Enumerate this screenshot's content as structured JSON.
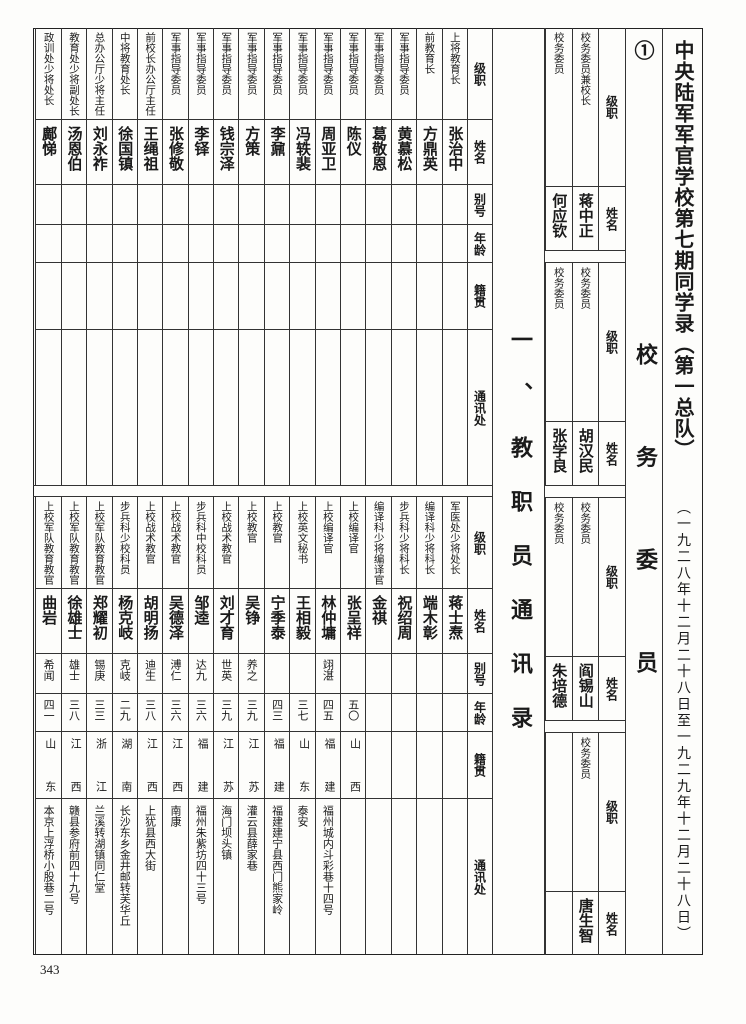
{
  "document": {
    "title": "中央陆军军官学校第七期同学录（第一总队）①",
    "date_range": "（一九二八年十二月二十八日至一九二九年十二月二十八日）",
    "page_number": "343"
  },
  "committee": {
    "section_title": "校务委员",
    "header": {
      "rank": "级职",
      "name": "姓名"
    },
    "blocks": [
      {
        "members": [
          {
            "rank": "校务委员兼校长",
            "name": "蒋中正"
          },
          {
            "rank": "校务委员",
            "name": "何应钦"
          }
        ]
      },
      {
        "members": [
          {
            "rank": "校务委员",
            "name": "胡汉民"
          },
          {
            "rank": "校务委员",
            "name": "张学良"
          }
        ]
      },
      {
        "members": [
          {
            "rank": "校务委员",
            "name": "阎锡山"
          },
          {
            "rank": "校务委员",
            "name": "朱培德"
          }
        ]
      },
      {
        "members": [
          {
            "rank": "校务委员",
            "name": "唐生智"
          },
          {
            "rank": "",
            "name": ""
          }
        ]
      }
    ]
  },
  "staff": {
    "section_title": "一、教职员通讯录",
    "headers": {
      "rank": "级职",
      "name": "姓名",
      "alias": "别号",
      "age": "年龄",
      "origin": "籍贯",
      "address": "通讯处"
    },
    "upper": [
      {
        "rank": "上将教育长",
        "name": "张治中",
        "alias": "",
        "age": "",
        "origin": "",
        "address": ""
      },
      {
        "rank": "前教育长",
        "name": "方鼎英",
        "alias": "",
        "age": "",
        "origin": "",
        "address": ""
      },
      {
        "rank": "军事指导委员",
        "name": "黄慕松",
        "alias": "",
        "age": "",
        "origin": "",
        "address": ""
      },
      {
        "rank": "军事指导委员",
        "name": "葛敬恩",
        "alias": "",
        "age": "",
        "origin": "",
        "address": ""
      },
      {
        "rank": "军事指导委员",
        "name": "陈仪",
        "alias": "",
        "age": "",
        "origin": "",
        "address": ""
      },
      {
        "rank": "军事指导委员",
        "name": "周亚卫",
        "alias": "",
        "age": "",
        "origin": "",
        "address": ""
      },
      {
        "rank": "军事指导委员",
        "name": "冯轶裴",
        "alias": "",
        "age": "",
        "origin": "",
        "address": ""
      },
      {
        "rank": "军事指导委员",
        "name": "李鼐",
        "alias": "",
        "age": "",
        "origin": "",
        "address": ""
      },
      {
        "rank": "军事指导委员",
        "name": "方策",
        "alias": "",
        "age": "",
        "origin": "",
        "address": ""
      },
      {
        "rank": "军事指导委员",
        "name": "钱宗泽",
        "alias": "",
        "age": "",
        "origin": "",
        "address": ""
      },
      {
        "rank": "军事指导委员",
        "name": "李铎",
        "alias": "",
        "age": "",
        "origin": "",
        "address": ""
      },
      {
        "rank": "军事指导委员",
        "name": "张修敬",
        "alias": "",
        "age": "",
        "origin": "",
        "address": ""
      },
      {
        "rank": "前校长办公厅主任",
        "name": "王绳祖",
        "alias": "",
        "age": "",
        "origin": "",
        "address": ""
      },
      {
        "rank": "中将教育处长",
        "name": "徐国镇",
        "alias": "",
        "age": "",
        "origin": "",
        "address": ""
      },
      {
        "rank": "总办公厅少将主任",
        "name": "刘永祚",
        "alias": "",
        "age": "",
        "origin": "",
        "address": ""
      },
      {
        "rank": "教育处少将副处长",
        "name": "汤恩伯",
        "alias": "",
        "age": "",
        "origin": "",
        "address": ""
      },
      {
        "rank": "政训处少将处长",
        "name": "鄺悌",
        "alias": "",
        "age": "",
        "origin": "",
        "address": ""
      }
    ],
    "lower": [
      {
        "rank": "军医处少将处长",
        "name": "蒋士焘",
        "alias": "",
        "age": "",
        "origin": "",
        "address": ""
      },
      {
        "rank": "编译科少将科长",
        "name": "端木彰",
        "alias": "",
        "age": "",
        "origin": "",
        "address": ""
      },
      {
        "rank": "步兵科少将科长",
        "name": "祝绍周",
        "alias": "",
        "age": "",
        "origin": "",
        "address": ""
      },
      {
        "rank": "编译科少将编译官",
        "name": "金祺",
        "alias": "",
        "age": "",
        "origin": "",
        "address": ""
      },
      {
        "rank": "上校编译官",
        "name": "张呈祥",
        "alias": "",
        "age": "五〇",
        "origin": "山西",
        "address": ""
      },
      {
        "rank": "上校编译官",
        "name": "林仲墉",
        "alias": "翊湛",
        "age": "四五",
        "origin": "福建",
        "address": "福州城内斗彩巷十四号"
      },
      {
        "rank": "上校英文秘书",
        "name": "王相毅",
        "alias": "",
        "age": "三七",
        "origin": "山东",
        "address": "泰安"
      },
      {
        "rank": "上校教官",
        "name": "宁季泰",
        "alias": "",
        "age": "四三",
        "origin": "福建",
        "address": "福建建宁县西门熊家岭"
      },
      {
        "rank": "上校教官",
        "name": "吴铮",
        "alias": "养之",
        "age": "三九",
        "origin": "江苏",
        "address": "灌云县薛家巷"
      },
      {
        "rank": "上校战术教官",
        "name": "刘才育",
        "alias": "世英",
        "age": "三九",
        "origin": "江苏",
        "address": "海门坝头镇"
      },
      {
        "rank": "步兵科中校科员",
        "name": "邹逵",
        "alias": "达九",
        "age": "三六",
        "origin": "福建",
        "address": "福州朱紫坊四十三号"
      },
      {
        "rank": "上校战术教官",
        "name": "吴德泽",
        "alias": "溥仁",
        "age": "三六",
        "origin": "江西",
        "address": "南康"
      },
      {
        "rank": "上校战术教官",
        "name": "胡明扬",
        "alias": "迪生",
        "age": "三八",
        "origin": "江西",
        "address": "上犹县西大街"
      },
      {
        "rank": "步兵科少校科员",
        "name": "杨克岐",
        "alias": "克岐",
        "age": "二九",
        "origin": "湖南",
        "address": "长沙东乡金井邮转芙华丘"
      },
      {
        "rank": "上校军队教育教官",
        "name": "郑耀初",
        "alias": "锡庚",
        "age": "三三",
        "origin": "浙江",
        "address": "兰溪转湖镇同仁堂"
      },
      {
        "rank": "上校军队教育教官",
        "name": "徐雄士",
        "alias": "雄士",
        "age": "三八",
        "origin": "江西",
        "address": "赣县参府前四十九号"
      },
      {
        "rank": "上校军队教育教官",
        "name": "曲岩",
        "alias": "希闻",
        "age": "四一",
        "origin": "山东",
        "address": "本京上浮桥小股巷二号"
      }
    ]
  }
}
